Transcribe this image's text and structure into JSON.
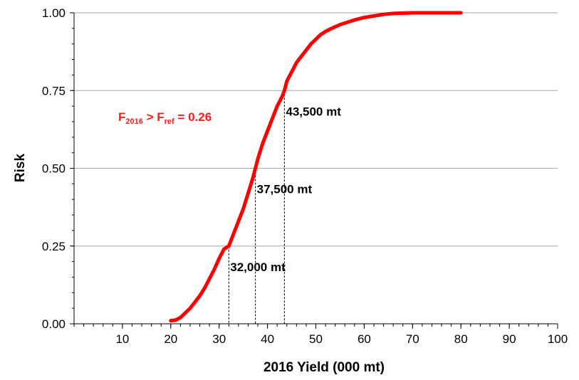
{
  "chart_data": {
    "type": "line",
    "xlabel": "2016 Yield (000 mt)",
    "ylabel": "Risk",
    "xlim": [
      0,
      100
    ],
    "ylim": [
      0,
      1
    ],
    "x_ticks": [
      "10",
      "20",
      "30",
      "40",
      "50",
      "60",
      "70",
      "80",
      "90",
      "100"
    ],
    "y_ticks": [
      "0.00",
      "0.25",
      "0.50",
      "0.75",
      "1.00"
    ],
    "grid": "horizontal",
    "series": [
      {
        "color": "#ff0000",
        "x": [
          20,
          21,
          22,
          23,
          24,
          25,
          26,
          27,
          28,
          29,
          30,
          31,
          32,
          33,
          34,
          35,
          36,
          37,
          37.5,
          38,
          39,
          40,
          41,
          42,
          43,
          43.5,
          44,
          45,
          46,
          47,
          48,
          49,
          50,
          51,
          52,
          53,
          54,
          55,
          56,
          57,
          58,
          60,
          62,
          64,
          66,
          70,
          75,
          80
        ],
        "y": [
          0.01,
          0.012,
          0.02,
          0.035,
          0.05,
          0.07,
          0.09,
          0.115,
          0.145,
          0.175,
          0.21,
          0.24,
          0.25,
          0.29,
          0.33,
          0.37,
          0.42,
          0.47,
          0.5,
          0.53,
          0.58,
          0.62,
          0.66,
          0.7,
          0.73,
          0.75,
          0.78,
          0.81,
          0.84,
          0.86,
          0.88,
          0.9,
          0.915,
          0.93,
          0.94,
          0.948,
          0.955,
          0.962,
          0.967,
          0.972,
          0.977,
          0.985,
          0.99,
          0.995,
          0.998,
          1.0,
          1.0,
          1.0
        ]
      }
    ],
    "reference_lines": [
      {
        "x": 32,
        "y": 0.25,
        "label": "32,000 mt"
      },
      {
        "x": 37.5,
        "y": 0.5,
        "label": "37,500 mt"
      },
      {
        "x": 43.5,
        "y": 0.75,
        "label": "43,500 mt"
      }
    ],
    "risk_annotation": {
      "main": "F",
      "main_sub": "2016",
      "middle": " > F",
      "middle_sub": "ref",
      "tail": " =  0.26",
      "color": "#ff1a1a"
    }
  }
}
